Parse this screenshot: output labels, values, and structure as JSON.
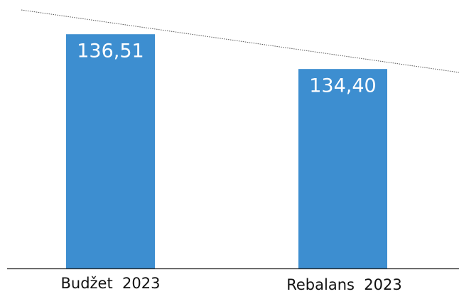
{
  "chart_data": {
    "type": "bar",
    "categories": [
      "Budžet  2023",
      "Rebalans  2023"
    ],
    "values": [
      136.51,
      134.4
    ],
    "value_labels": [
      "136,51",
      "134,40"
    ],
    "color": "#3d8ed0",
    "ylim": [
      122.3,
      138.5
    ]
  }
}
